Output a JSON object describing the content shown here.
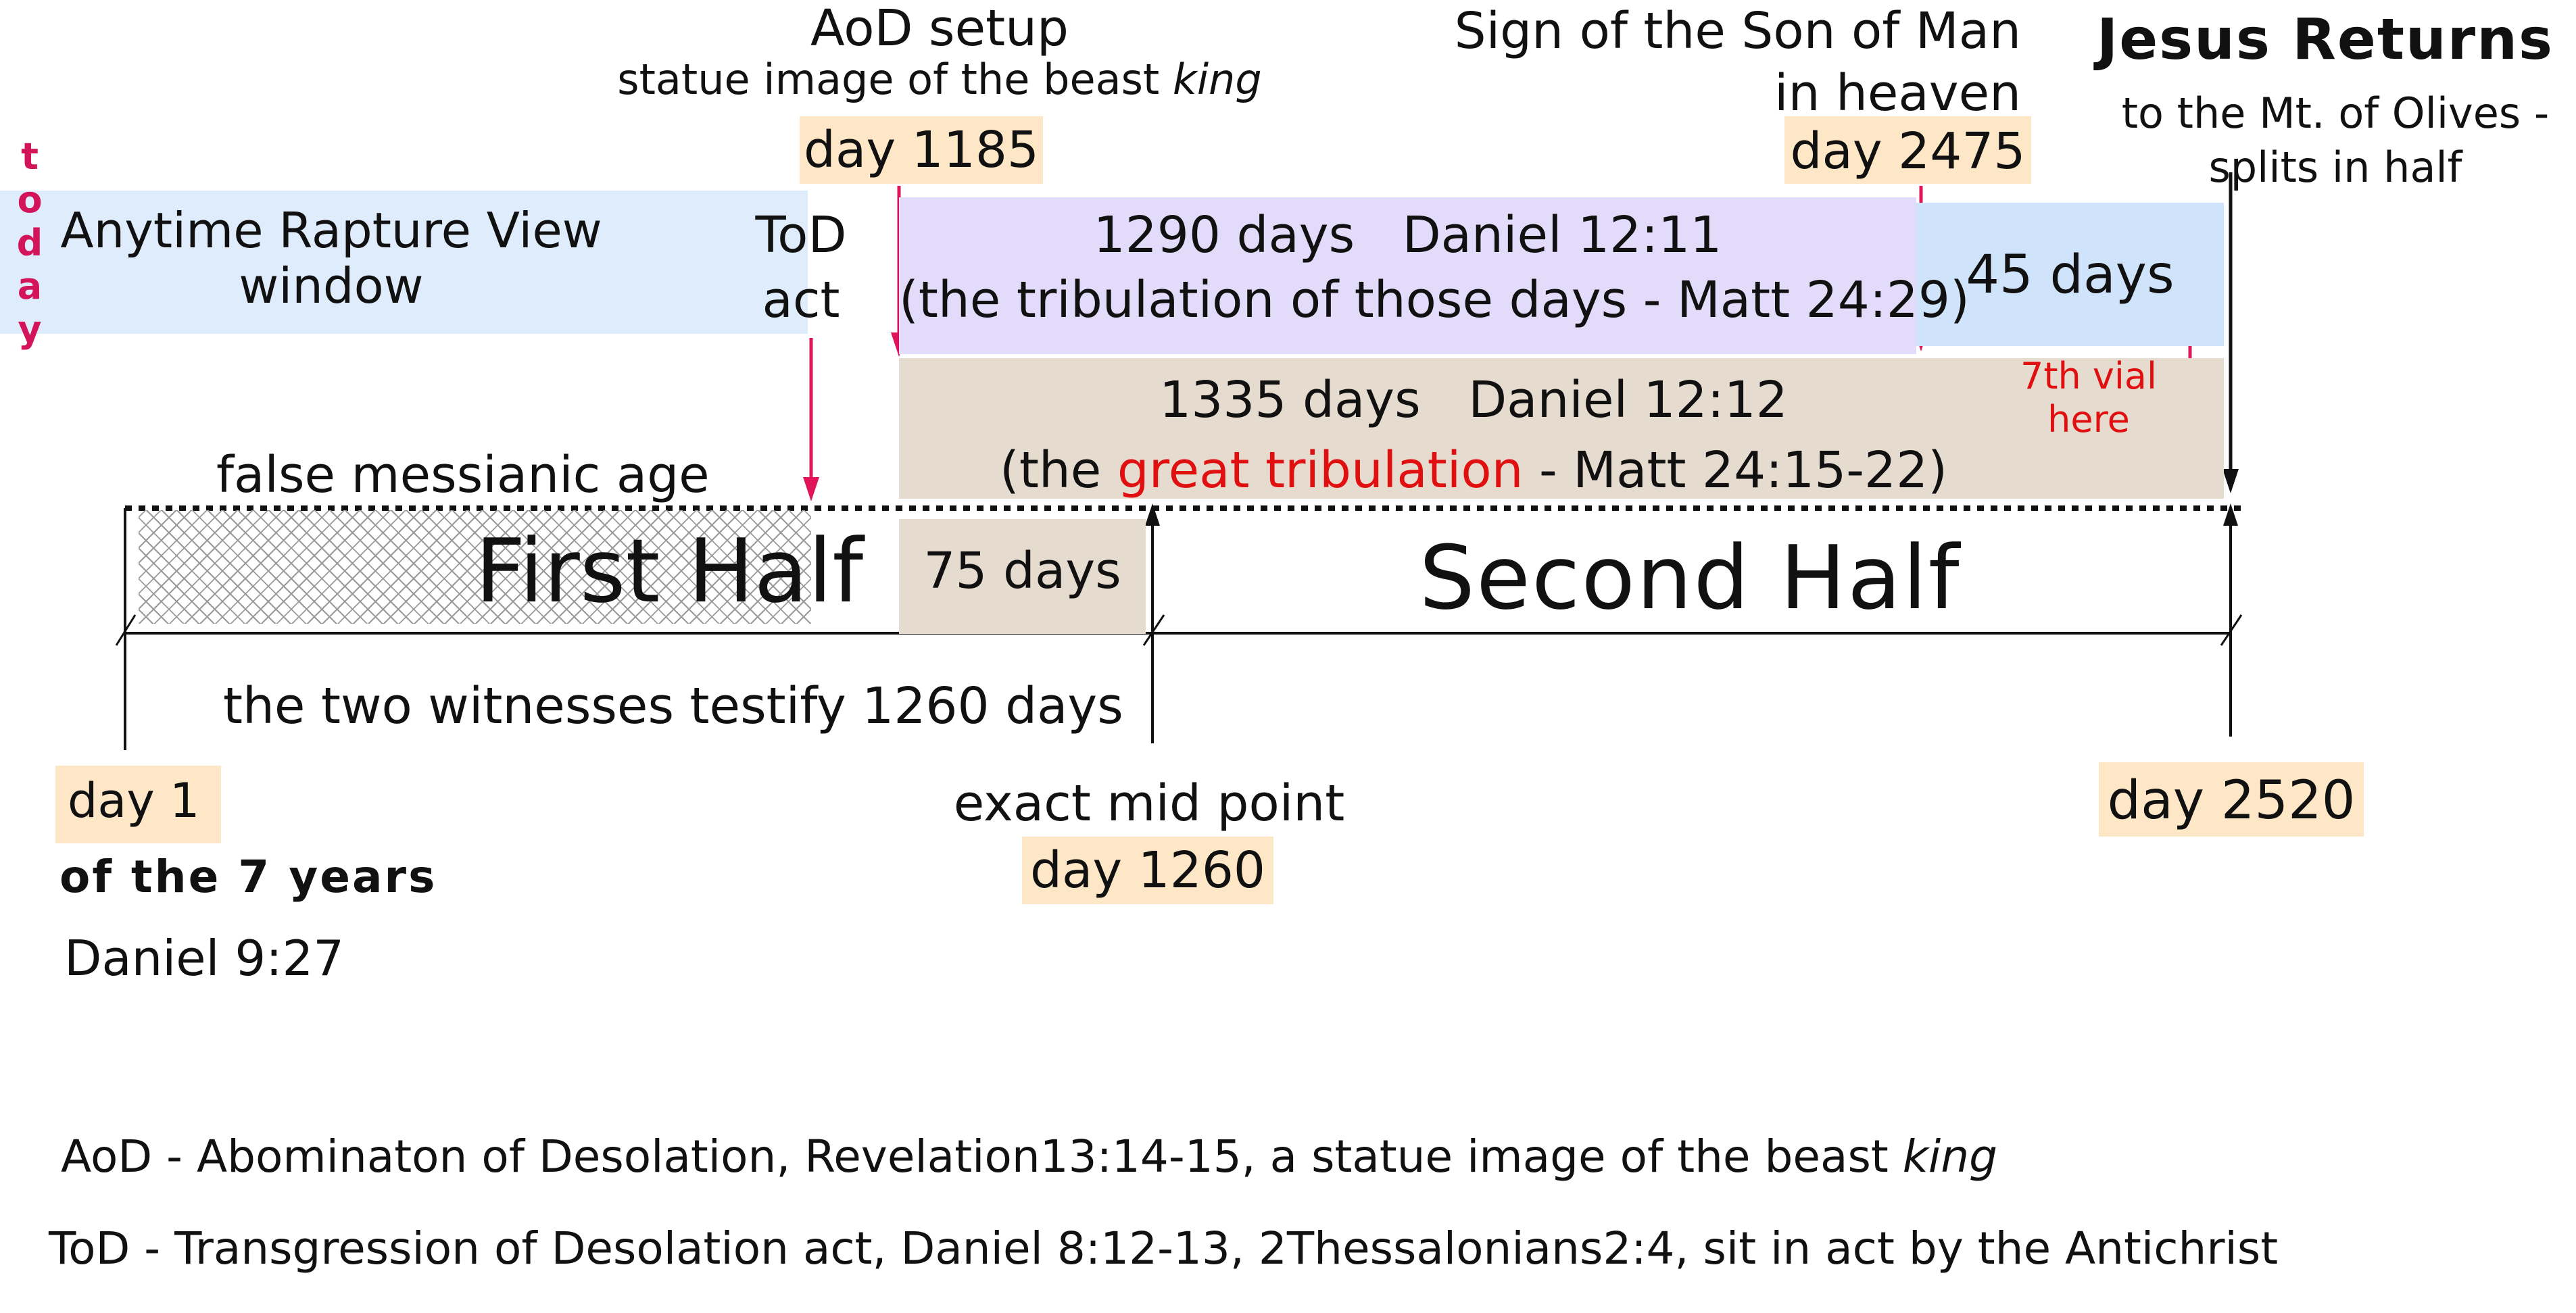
{
  "today": [
    "t",
    "o",
    "d",
    "a",
    "y"
  ],
  "markers": {
    "aod": {
      "title": "AoD setup",
      "subtitle_prefix": "statue image of the beast ",
      "subtitle_italic": "king",
      "day": "day 1185"
    },
    "sign": {
      "line1": "Sign of the Son of Man",
      "line2": "in heaven",
      "day": "day 2475"
    },
    "jesus": {
      "title": "Jesus Returns",
      "line1": "to the Mt. of Olives -",
      "line2": "splits in half"
    },
    "tod": {
      "line1": "ToD",
      "line2": "act"
    },
    "day1": {
      "day": "day 1",
      "line1": "of the 7 years",
      "line2": "Daniel 9:27"
    },
    "mid": {
      "label": "exact mid point",
      "day": "day 1260"
    },
    "end": {
      "day": "day 2520"
    }
  },
  "bands": {
    "rapture": {
      "line1": "Anytime Rapture View",
      "line2": "window",
      "color": "#dfecfb"
    },
    "d1290": {
      "line1": "1290 days   Daniel 12:11",
      "line2": "(the tribulation of those days - Matt 24:29)",
      "color": "#e3dbfa"
    },
    "d45": {
      "label": "45 days",
      "color": "#cfe4fb"
    },
    "d1335": {
      "line1": "1335 days   Daniel 12:12",
      "line2_prefix": "(the ",
      "line2_highlight": "great tribulation",
      "line2_suffix": " - Matt 24:15-22)",
      "color": "#e6dbcf",
      "highlight_color": "#e01010"
    },
    "d75": {
      "label": "75 days"
    }
  },
  "vial": {
    "line1": "7th vial",
    "line2": "here"
  },
  "timeline": {
    "false_age": "false messianic age",
    "first_half": "First Half",
    "second_half": "Second Half",
    "witnesses": "the two witnesses testify 1260 days"
  },
  "legend": {
    "aod_prefix": "AoD - Abominaton of Desolation, Revelation13:14-15, a statue image of the beast ",
    "aod_italic": "king",
    "tod": "ToD - Transgression of Desolation act, Daniel 8:12-13, 2Thessalonians2:4, sit in act by the Antichrist"
  },
  "colors": {
    "arrow_pink": "#e0145a",
    "tag": "#fde7c6",
    "black": "#111111"
  }
}
